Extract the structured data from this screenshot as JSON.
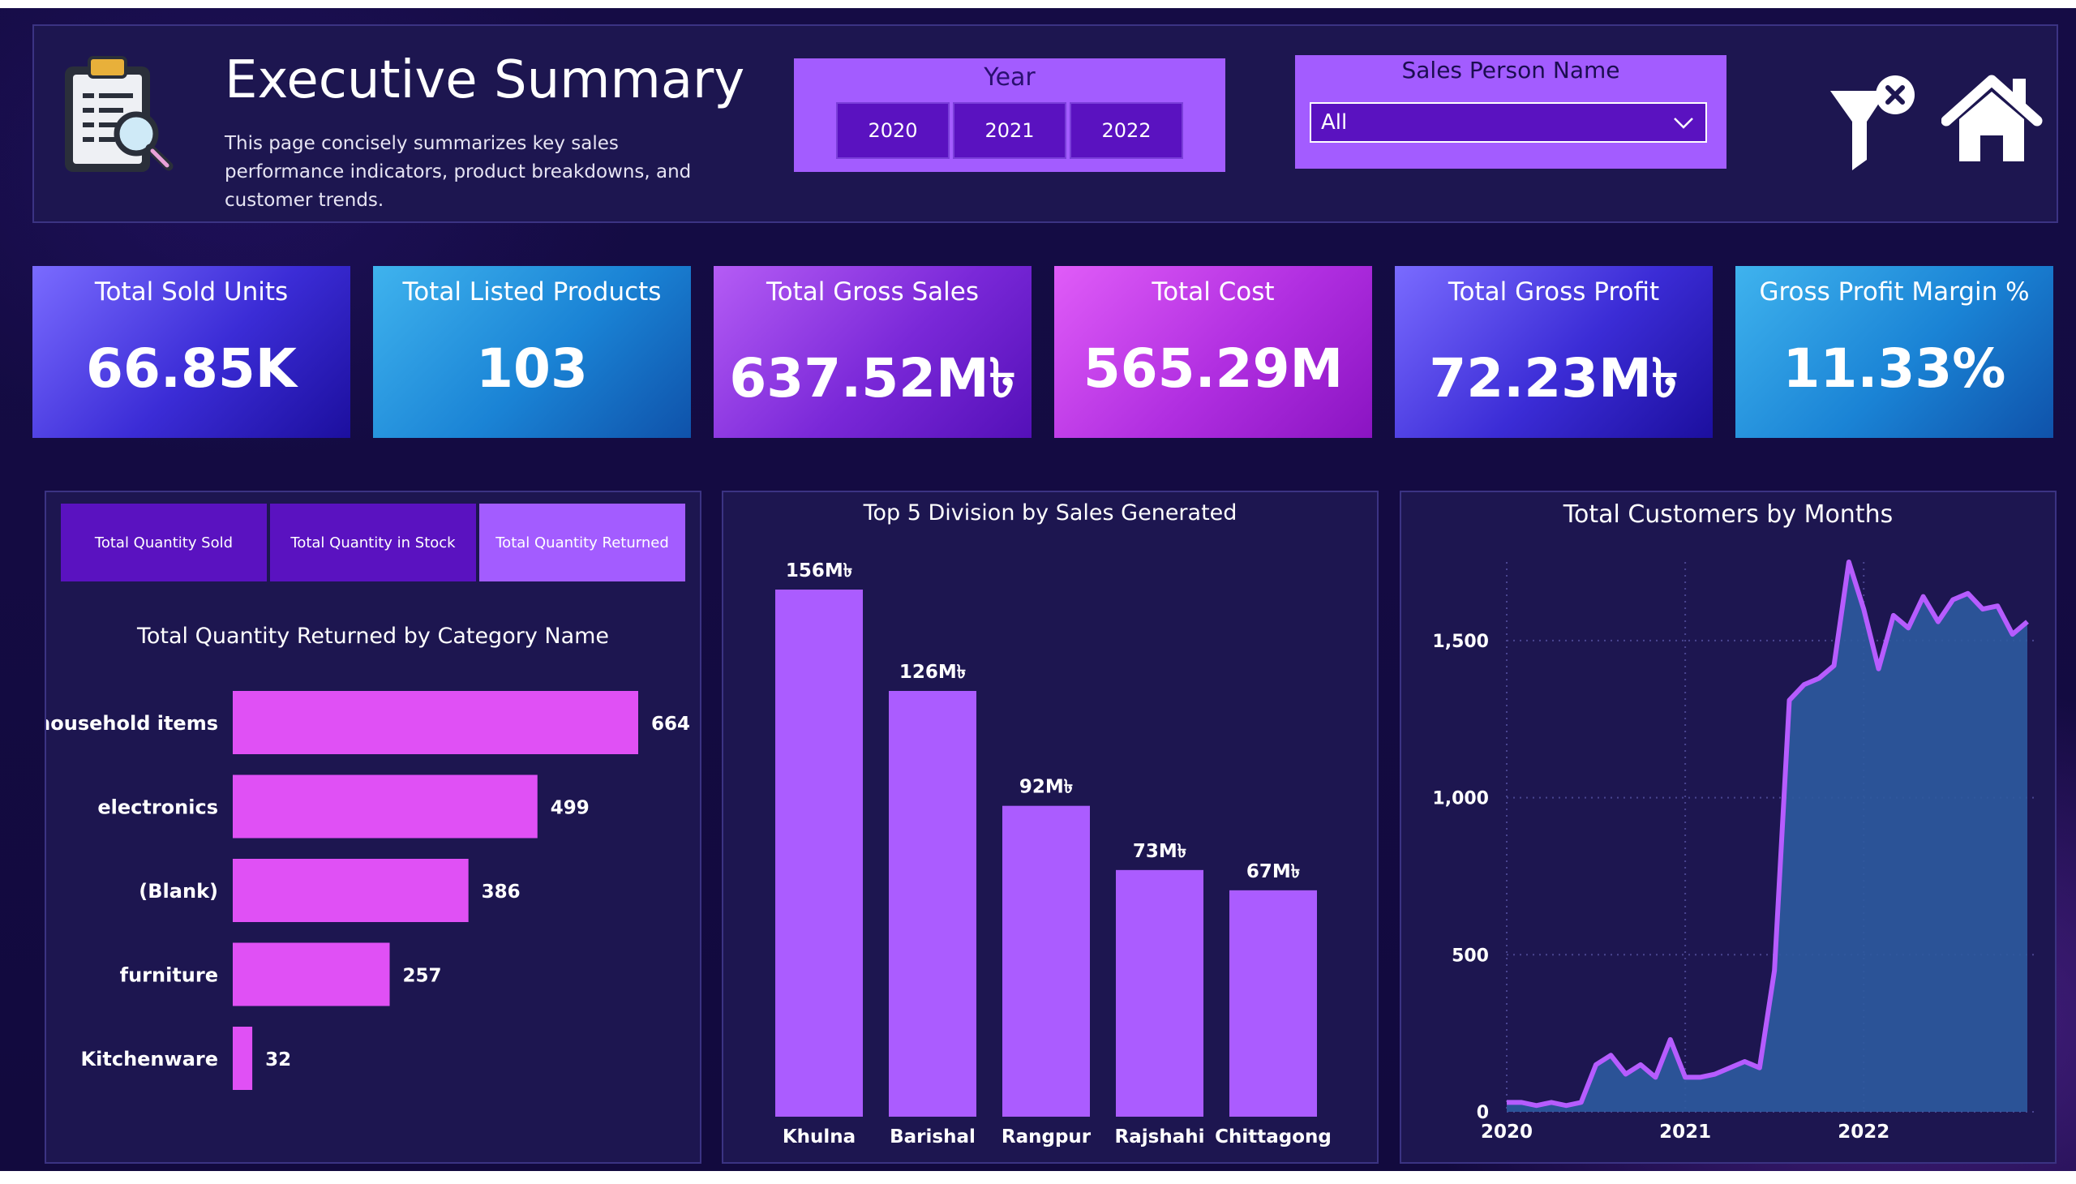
{
  "header": {
    "title": "Executive Summary",
    "description": "This page concisely summarizes key sales performance indicators, product breakdowns, and customer trends."
  },
  "year_slicer": {
    "title": "Year",
    "options": [
      "2020",
      "2021",
      "2022"
    ]
  },
  "sales_person": {
    "title": "Sales Person Name",
    "selected": "All"
  },
  "icons": {
    "logo": "clipboard-magnifier-icon",
    "clear": "clear-filter-icon",
    "home": "home-icon"
  },
  "kpis": [
    {
      "label": "Total Sold Units",
      "value": "66.85K"
    },
    {
      "label": "Total Listed Products",
      "value": "103"
    },
    {
      "label": "Total Gross Sales",
      "value": "637.52M৳"
    },
    {
      "label": "Total Cost",
      "value": "565.29M"
    },
    {
      "label": "Total Gross Profit",
      "value": "72.23M৳"
    },
    {
      "label": "Gross Profit Margin %",
      "value": "11.33%"
    }
  ],
  "toggles": [
    {
      "label": "Total Quantity Sold",
      "active": false
    },
    {
      "label": "Total Quantity in Stock",
      "active": false
    },
    {
      "label": "Total Quantity Returned",
      "active": true
    }
  ],
  "colors": {
    "accent": "#a35cff",
    "bar_pink": "#e050f5",
    "bar_purple": "#ab5cff",
    "line": "#b65cff",
    "area": "#2d5a9e"
  },
  "chart_data": [
    {
      "type": "bar",
      "orientation": "horizontal",
      "title": "Total Quantity Returned by Category Name",
      "categories": [
        "household items",
        "electronics",
        "(Blank)",
        "furniture",
        "Kitchenware"
      ],
      "values": [
        664,
        499,
        386,
        257,
        32
      ],
      "labels": [
        "664",
        "499",
        "386",
        "257",
        "32"
      ]
    },
    {
      "type": "bar",
      "title": "Top 5 Division by Sales Generated",
      "categories": [
        "Khulna",
        "Barishal",
        "Rangpur",
        "Rajshahi",
        "Chittagong"
      ],
      "values": [
        156,
        126,
        92,
        73,
        67
      ],
      "labels": [
        "156M৳",
        "126M৳",
        "92M৳",
        "73M৳",
        "67M৳"
      ]
    },
    {
      "type": "area",
      "title": "Total Customers by Months",
      "x_ticks": [
        "2020",
        "2021",
        "2022"
      ],
      "y_ticks": [
        "0",
        "500",
        "1,000",
        "1,500"
      ],
      "ylim": [
        0,
        1750
      ],
      "grid": true,
      "values": [
        30,
        30,
        20,
        30,
        20,
        30,
        150,
        180,
        120,
        150,
        110,
        230,
        110,
        110,
        120,
        140,
        160,
        140,
        450,
        1310,
        1360,
        1380,
        1420,
        1750,
        1600,
        1410,
        1580,
        1540,
        1640,
        1560,
        1630,
        1650,
        1600,
        1610,
        1520,
        1560
      ]
    }
  ]
}
